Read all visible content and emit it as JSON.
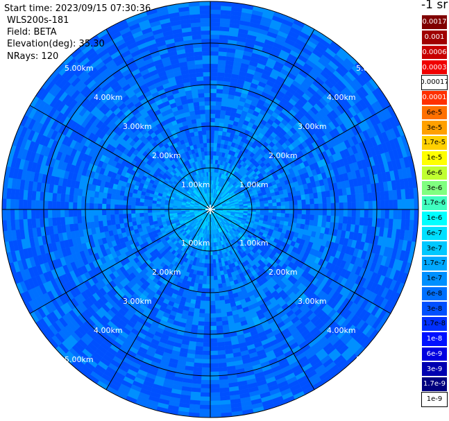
{
  "header": {
    "start_time": "Start time: 2023/09/15 07:30:36",
    "instrument": "WLS200s-181",
    "field": "Field: BETA",
    "elevation": "Elevation(deg): 35.30",
    "nrays": "NRays: 120"
  },
  "units": "-1 sr",
  "range_labels": [
    "1.00km",
    "2.00km",
    "3.00km",
    "4.00km",
    "5.00km"
  ],
  "legend": [
    {
      "label": "0.0017",
      "color": "#800000",
      "text_color": "#ffffff"
    },
    {
      "label": "0.001",
      "color": "#a00000",
      "text_color": "#ffffff"
    },
    {
      "label": "0.0006",
      "color": "#c80000",
      "text_color": "#ffffff"
    },
    {
      "label": "0.0003",
      "color": "#f00000",
      "text_color": "#ffffff"
    },
    {
      "label": "0.00017",
      "color": "#ffffff",
      "text_color": "#000000"
    },
    {
      "label": "0.0001",
      "color": "#ff3000",
      "text_color": "#ffffff"
    },
    {
      "label": "6e-5",
      "color": "#ff7000",
      "text_color": "#000000"
    },
    {
      "label": "3e-5",
      "color": "#ffa000",
      "text_color": "#000000"
    },
    {
      "label": "1.7e-5",
      "color": "#ffd000",
      "text_color": "#000000"
    },
    {
      "label": "1e-5",
      "color": "#ffff00",
      "text_color": "#000000"
    },
    {
      "label": "6e-6",
      "color": "#c0ff30",
      "text_color": "#000000"
    },
    {
      "label": "3e-6",
      "color": "#80ff80",
      "text_color": "#000000"
    },
    {
      "label": "1.7e-6",
      "color": "#40ffc0",
      "text_color": "#000000"
    },
    {
      "label": "1e-6",
      "color": "#00ffff",
      "text_color": "#000000"
    },
    {
      "label": "6e-7",
      "color": "#00e0ff",
      "text_color": "#000000"
    },
    {
      "label": "3e-7",
      "color": "#00c8ff",
      "text_color": "#000000"
    },
    {
      "label": "1.7e-7",
      "color": "#00a8ff",
      "text_color": "#000000"
    },
    {
      "label": "1e-7",
      "color": "#0090ff",
      "text_color": "#000000"
    },
    {
      "label": "6e-8",
      "color": "#0070ff",
      "text_color": "#000000"
    },
    {
      "label": "3e-8",
      "color": "#0050ff",
      "text_color": "#000000"
    },
    {
      "label": "1.7e-8",
      "color": "#0030ff",
      "text_color": "#000000"
    },
    {
      "label": "1e-8",
      "color": "#0010ff",
      "text_color": "#ffffff"
    },
    {
      "label": "6e-9",
      "color": "#0000e0",
      "text_color": "#ffffff"
    },
    {
      "label": "3e-9",
      "color": "#0000b0",
      "text_color": "#ffffff"
    },
    {
      "label": "1.7e-9",
      "color": "#000080",
      "text_color": "#ffffff"
    },
    {
      "label": "1e-9",
      "color": "#ffffff",
      "text_color": "#000000"
    }
  ]
}
